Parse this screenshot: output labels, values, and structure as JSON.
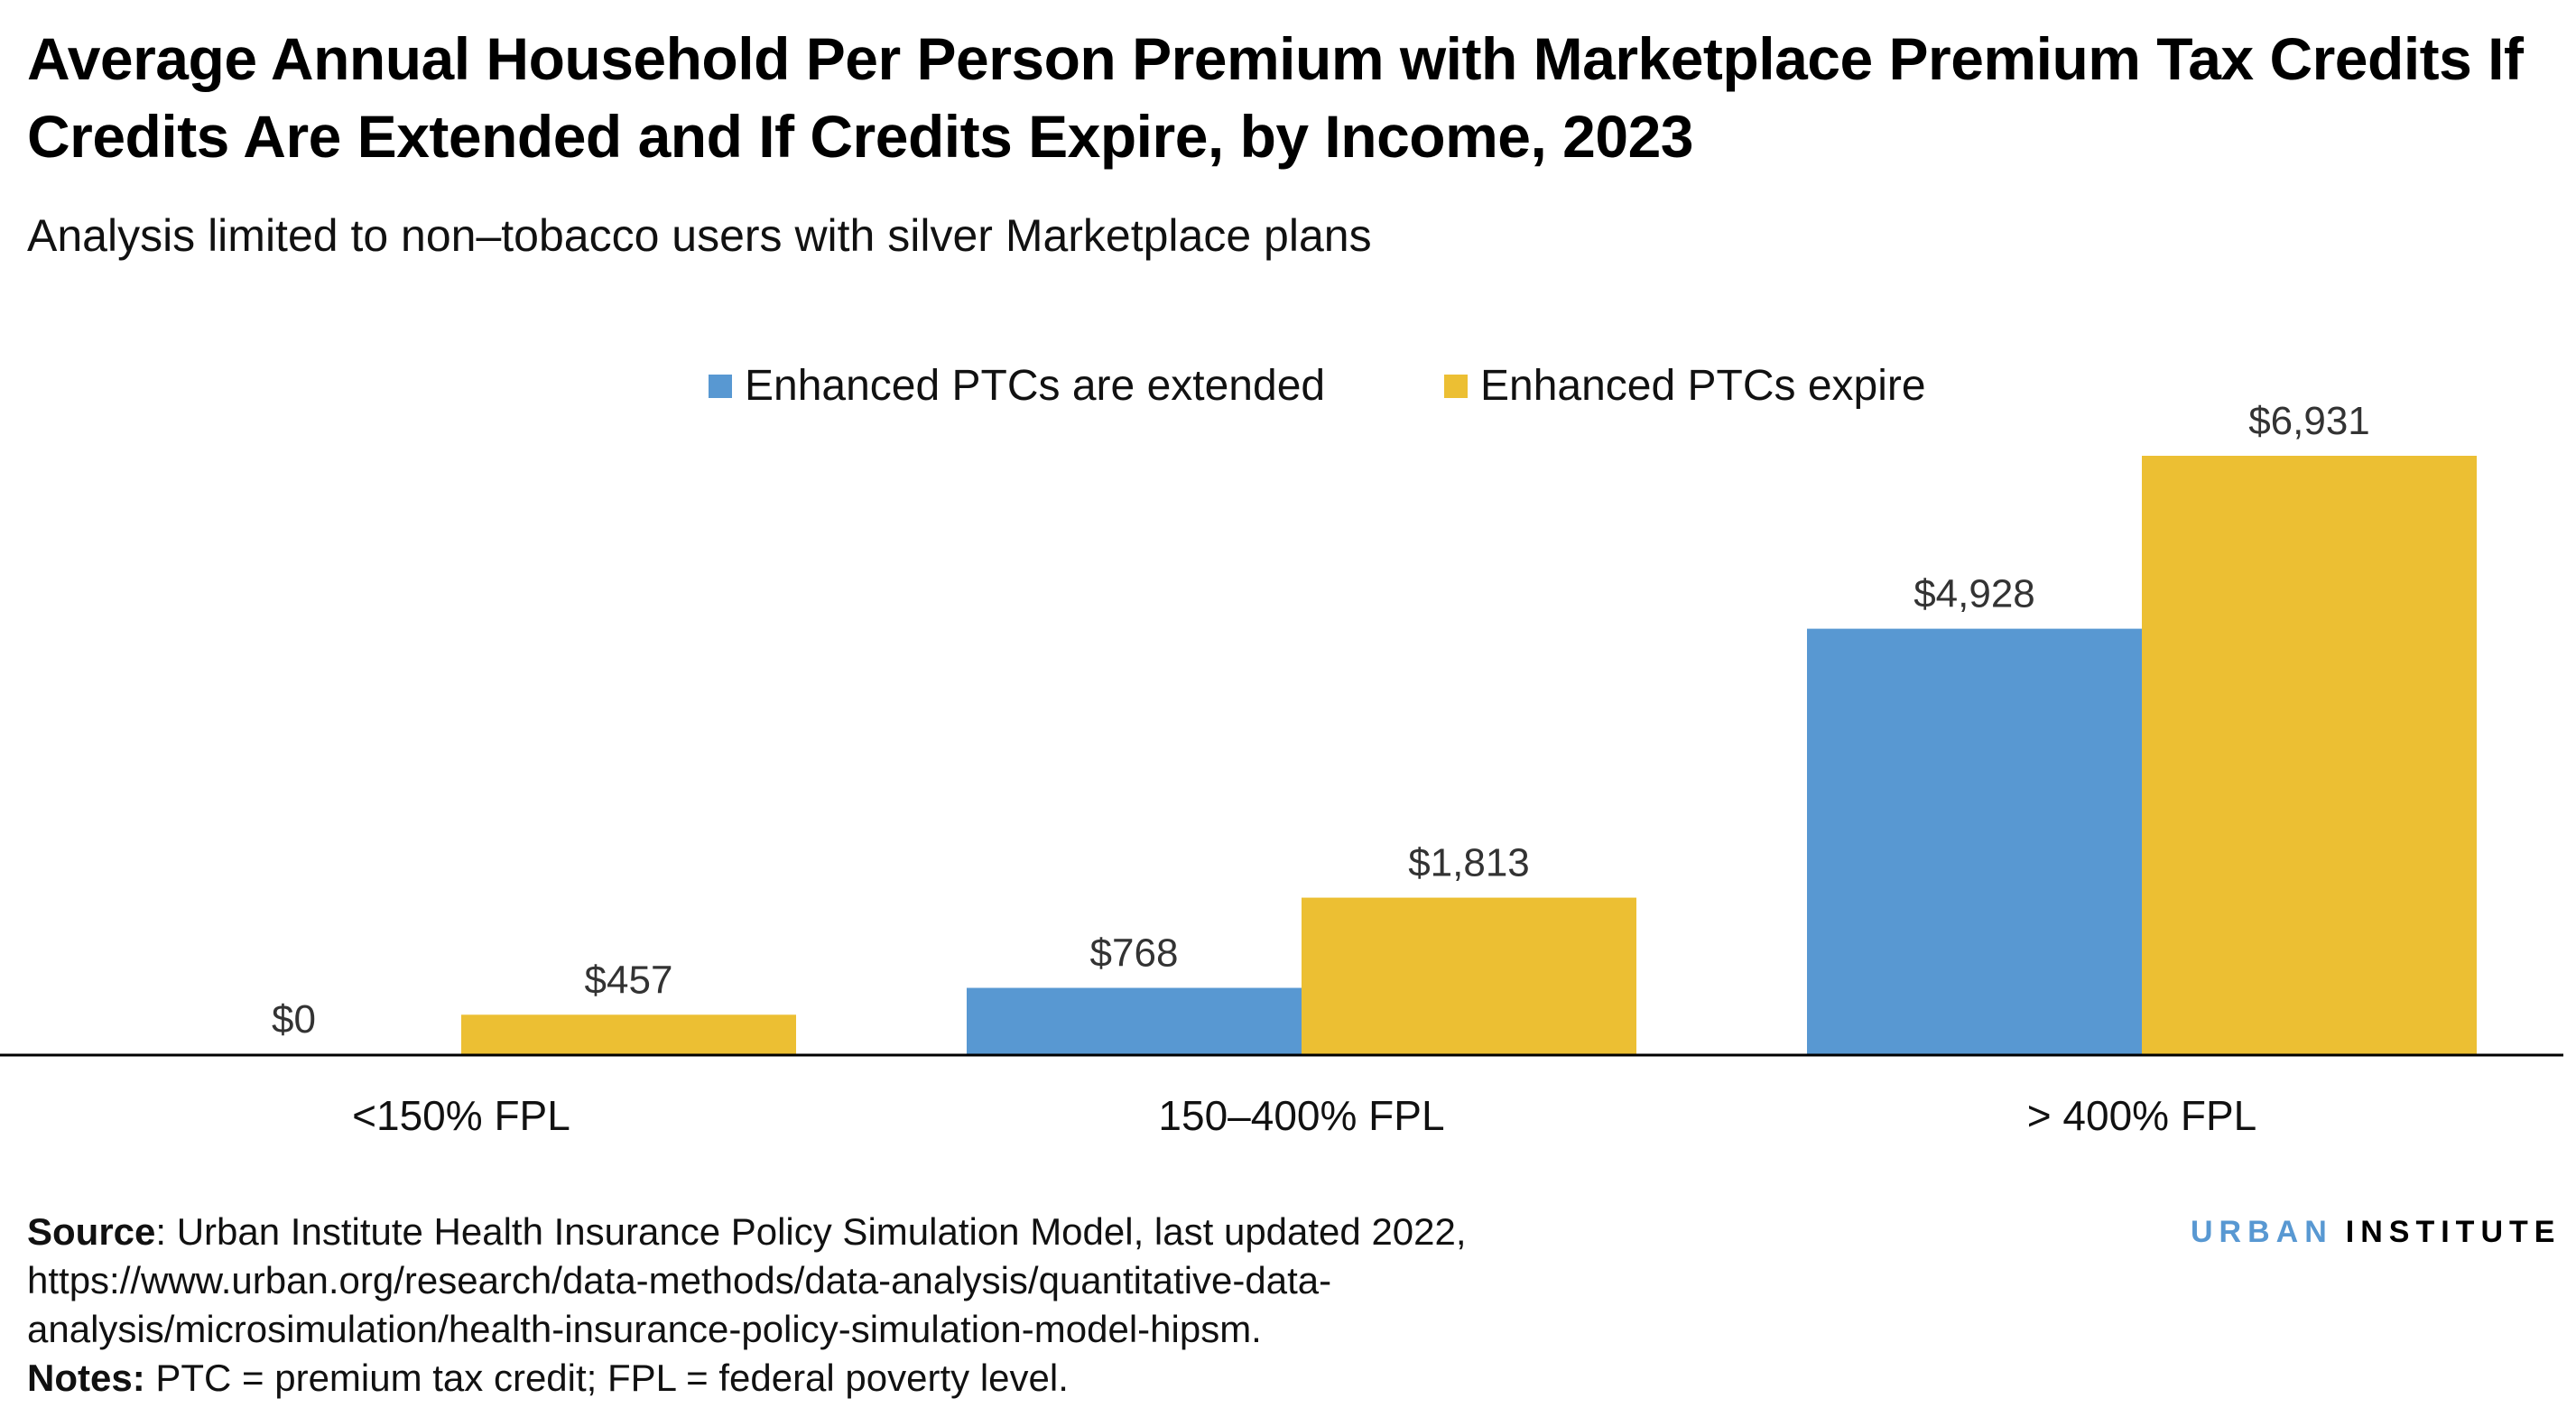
{
  "title": "Average Annual Household Per Person Premium with Marketplace Premium Tax Credits If Credits Are Extended and If Credits Expire, by Income, 2023",
  "subtitle": "Analysis limited to non–tobacco users with silver Marketplace plans",
  "colors": {
    "extended": "#5898d2",
    "expire": "#ecbf33",
    "logo_urban": "#5898d2"
  },
  "chart_data": {
    "type": "bar",
    "title": "Average Annual Household Per Person Premium with Marketplace Premium Tax Credits If Credits Are Extended and If Credits Expire, by Income, 2023",
    "categories": [
      "<150% FPL",
      "150–400% FPL",
      "> 400% FPL"
    ],
    "series": [
      {
        "name": "Enhanced PTCs are extended",
        "values": [
          0,
          768,
          4928
        ],
        "labels": [
          "$0",
          "$768",
          "$4,928"
        ]
      },
      {
        "name": "Enhanced PTCs expire",
        "values": [
          457,
          1813,
          6931
        ],
        "labels": [
          "$457",
          "$1,813",
          "$6,931"
        ]
      }
    ],
    "xlabel": "",
    "ylabel": "",
    "ylim": [
      0,
      6931
    ],
    "grid": false,
    "legend": "top-center"
  },
  "source": {
    "label": "Source",
    "text": ": Urban Institute Health Insurance Policy Simulation Model, last updated 2022,",
    "line2": "https://www.urban.org/research/data-methods/data-analysis/quantitative-data-",
    "line3": "analysis/microsimulation/health-insurance-policy-simulation-model-hipsm."
  },
  "notes": {
    "label": "Notes:",
    "text": " PTC = premium tax credit; FPL = federal poverty level."
  },
  "logo": {
    "part1": "URBAN",
    "part2": "INSTITUTE"
  }
}
